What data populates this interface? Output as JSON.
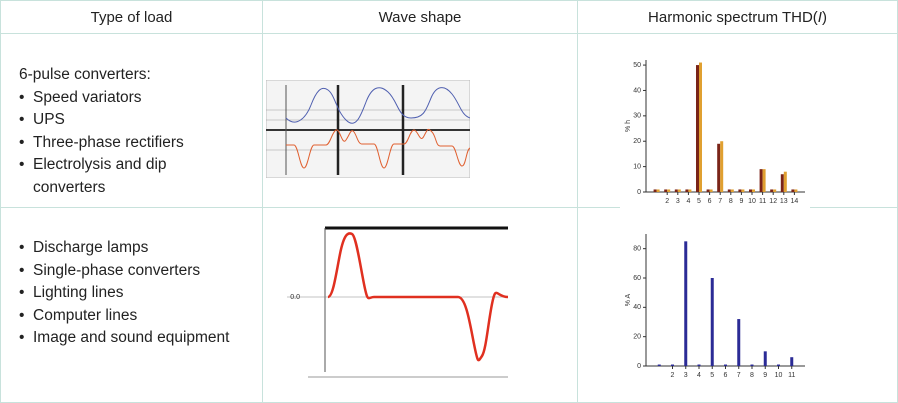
{
  "table": {
    "header": [
      {
        "text": "Type of load"
      },
      {
        "text": "Wave shape"
      },
      {
        "text": "Harmonic spectrum THD(",
        "italic": "I",
        "end": ")"
      }
    ],
    "rows": [
      {
        "intro": "6-pulse converters:",
        "items": [
          "Speed variators",
          "UPS",
          "Three-phase rectifiers",
          "Electrolysis and dip converters"
        ]
      },
      {
        "items": [
          "Discharge lamps",
          "Single-phase converters",
          "Lighting lines",
          "Computer lines",
          "Image and sound equipment"
        ]
      }
    ]
  },
  "waves": [
    {},
    {
      "label": "0.0"
    }
  ],
  "spectra": [
    {
      "type": "bar",
      "ylabel": "% h",
      "x": [
        1,
        2,
        3,
        4,
        5,
        6,
        7,
        8,
        9,
        10,
        11,
        12,
        13,
        14
      ],
      "xlim": [
        0,
        15
      ],
      "xticks": [
        2,
        3,
        4,
        5,
        6,
        7,
        8,
        9,
        10,
        11,
        12,
        13,
        14
      ],
      "ylim": [
        0,
        52
      ],
      "yticks": [
        0,
        10,
        20,
        30,
        40,
        50
      ],
      "series": [
        {
          "color": "#7a2418",
          "values": [
            1,
            1,
            1,
            1,
            50,
            1,
            19,
            1,
            1,
            1,
            9,
            1,
            7,
            1
          ]
        },
        {
          "color": "#e0a030",
          "values": [
            1,
            1,
            1,
            1,
            51,
            1,
            20,
            1,
            1,
            1,
            9,
            1,
            8,
            1
          ]
        }
      ]
    },
    {
      "type": "bar",
      "ylabel": "% A",
      "x": [
        1,
        2,
        3,
        4,
        5,
        6,
        7,
        8,
        9,
        10,
        11
      ],
      "xlim": [
        0,
        12
      ],
      "xticks": [
        2,
        3,
        4,
        5,
        6,
        7,
        8,
        9,
        10,
        11
      ],
      "ylim": [
        0,
        90
      ],
      "yticks": [
        0,
        20,
        40,
        60,
        80
      ],
      "series": [
        {
          "color": "#2b2b96",
          "values": [
            1,
            1,
            85,
            1,
            60,
            1,
            32,
            1,
            10,
            1,
            6
          ]
        }
      ]
    }
  ]
}
